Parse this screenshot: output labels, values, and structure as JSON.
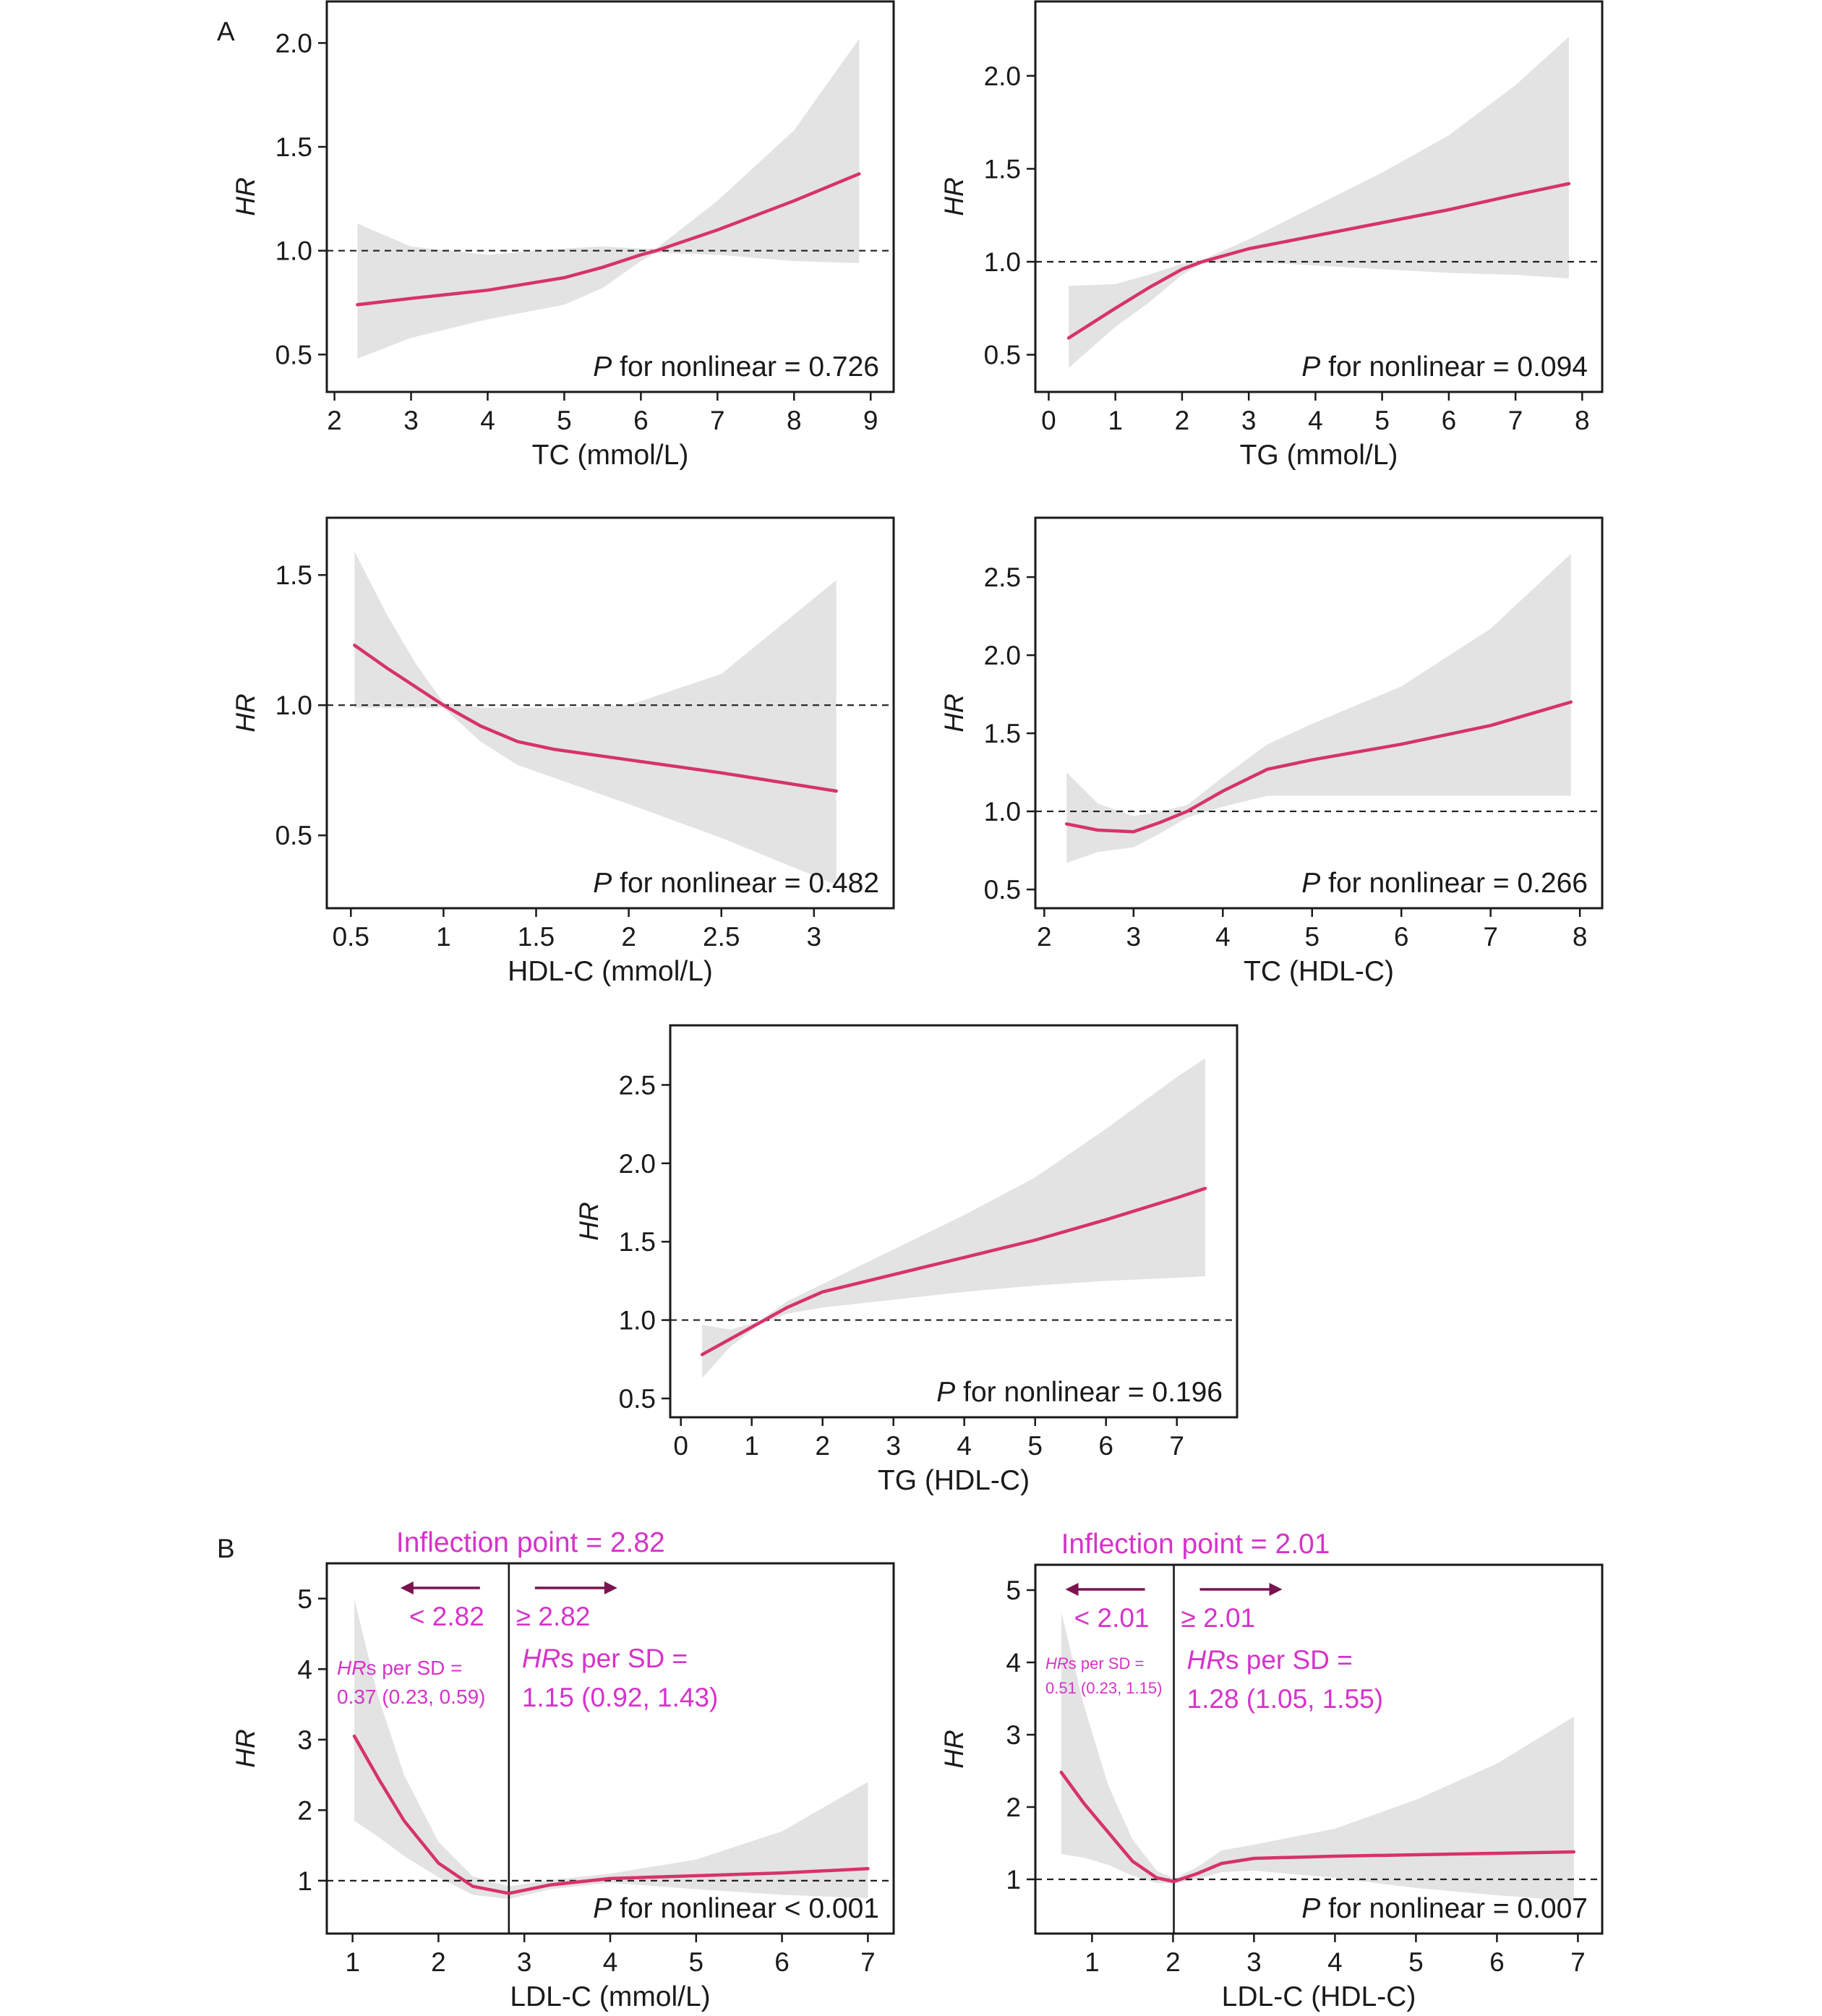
{
  "panel_labels": [
    "A",
    "B"
  ],
  "colors": {
    "curve": "#d6336b",
    "band": "#e3e3e3",
    "annotation": "#d633c9",
    "arrow": "#7a1450"
  },
  "chart_data": [
    {
      "id": "tc",
      "type": "line",
      "xlabel": "TC (mmol/L)",
      "ylabel": "HR",
      "xlim": [
        1.9,
        9.3
      ],
      "ylim": [
        0.32,
        2.2
      ],
      "xticks": [
        2,
        3,
        4,
        5,
        6,
        7,
        8,
        9
      ],
      "yticks": [
        0.5,
        1.0,
        1.5,
        2.0
      ],
      "ytick_format": 1,
      "reference_line": 1.0,
      "annotation": "P for nonlinear = 0.726",
      "x": [
        2.3,
        3,
        4,
        5,
        5.5,
        6,
        6.2,
        7,
        8,
        8.85
      ],
      "y": [
        0.74,
        0.77,
        0.81,
        0.87,
        0.92,
        0.98,
        1.0,
        1.1,
        1.24,
        1.37
      ],
      "lower": [
        0.48,
        0.58,
        0.67,
        0.74,
        0.82,
        0.95,
        0.99,
        0.98,
        0.95,
        0.94
      ],
      "upper": [
        1.13,
        1.02,
        0.98,
        1.01,
        1.02,
        1.01,
        1.01,
        1.24,
        1.58,
        2.02
      ]
    },
    {
      "id": "tg",
      "type": "line",
      "xlabel": "TG (mmol/L)",
      "ylabel": "HR",
      "xlim": [
        -0.2,
        8.3
      ],
      "ylim": [
        0.3,
        2.4
      ],
      "xticks": [
        0,
        1,
        2,
        3,
        4,
        5,
        6,
        7,
        8
      ],
      "yticks": [
        0.5,
        1.0,
        1.5,
        2.0
      ],
      "ytick_format": 1,
      "reference_line": 1.0,
      "annotation": "P for nonlinear = 0.094",
      "x": [
        0.3,
        1,
        1.5,
        2,
        2.3,
        3,
        4,
        5,
        6,
        7,
        7.8
      ],
      "y": [
        0.59,
        0.75,
        0.86,
        0.96,
        1.0,
        1.07,
        1.14,
        1.21,
        1.28,
        1.36,
        1.42
      ],
      "lower": [
        0.43,
        0.65,
        0.78,
        0.93,
        0.99,
        1.0,
        0.98,
        0.96,
        0.94,
        0.93,
        0.91
      ],
      "upper": [
        0.87,
        0.88,
        0.93,
        0.99,
        1.01,
        1.12,
        1.3,
        1.48,
        1.68,
        1.95,
        2.21
      ]
    },
    {
      "id": "hdl",
      "type": "line",
      "xlabel": "HDL-C (mmol/L)",
      "ylabel": "HR",
      "xlim": [
        0.37,
        3.43
      ],
      "ylim": [
        0.22,
        1.72
      ],
      "xticks": [
        0.5,
        1.0,
        1.5,
        2.0,
        2.5,
        3.0
      ],
      "yticks": [
        0.5,
        1.0,
        1.5
      ],
      "ytick_format": 1,
      "reference_line": 1.0,
      "annotation": "P for nonlinear = 0.482",
      "x": [
        0.52,
        0.7,
        0.85,
        1.0,
        1.2,
        1.4,
        1.6,
        2.0,
        2.5,
        3.12
      ],
      "y": [
        1.23,
        1.14,
        1.07,
        1.0,
        0.92,
        0.86,
        0.83,
        0.79,
        0.74,
        0.67
      ],
      "lower": [
        0.99,
        0.99,
        0.99,
        0.99,
        0.86,
        0.77,
        0.72,
        0.62,
        0.49,
        0.31
      ],
      "upper": [
        1.59,
        1.34,
        1.16,
        1.01,
        0.99,
        0.99,
        0.99,
        1.0,
        1.12,
        1.48
      ]
    },
    {
      "id": "tc_hdl",
      "type": "line",
      "xlabel": "TC (HDL-C)",
      "ylabel": "HR",
      "xlim": [
        1.9,
        8.25
      ],
      "ylim": [
        0.38,
        2.88
      ],
      "xticks": [
        2,
        3,
        4,
        5,
        6,
        7,
        8
      ],
      "yticks": [
        0.5,
        1.0,
        1.5,
        2.0,
        2.5
      ],
      "ytick_format": 1,
      "reference_line": 1.0,
      "annotation": "P for nonlinear = 0.266",
      "x": [
        2.25,
        2.6,
        3.0,
        3.3,
        3.6,
        4.0,
        4.5,
        5.0,
        6.0,
        7.0,
        7.9
      ],
      "y": [
        0.92,
        0.88,
        0.87,
        0.93,
        1.0,
        1.13,
        1.27,
        1.33,
        1.43,
        1.55,
        1.7
      ],
      "lower": [
        0.67,
        0.74,
        0.77,
        0.86,
        0.96,
        1.03,
        1.1,
        1.1,
        1.1,
        1.1,
        1.1
      ],
      "upper": [
        1.25,
        1.05,
        0.97,
        1.0,
        1.04,
        1.22,
        1.43,
        1.56,
        1.8,
        2.17,
        2.65
      ]
    },
    {
      "id": "tg_hdl",
      "type": "line",
      "xlabel": "TG (HDL-C)",
      "ylabel": "HR",
      "xlim": [
        -0.15,
        7.85
      ],
      "ylim": [
        0.38,
        2.88
      ],
      "xticks": [
        0,
        1,
        2,
        3,
        4,
        5,
        6,
        7
      ],
      "yticks": [
        0.5,
        1.0,
        1.5,
        2.0,
        2.5
      ],
      "ytick_format": 1,
      "reference_line": 1.0,
      "annotation": "P for nonlinear = 0.196",
      "x": [
        0.3,
        0.7,
        1.1,
        1.5,
        2.0,
        3.0,
        4.0,
        5.0,
        6.0,
        7.0,
        7.4
      ],
      "y": [
        0.78,
        0.88,
        0.98,
        1.08,
        1.18,
        1.29,
        1.4,
        1.51,
        1.64,
        1.78,
        1.84
      ],
      "lower": [
        0.63,
        0.83,
        0.97,
        1.04,
        1.08,
        1.13,
        1.18,
        1.22,
        1.25,
        1.27,
        1.28
      ],
      "upper": [
        0.97,
        0.94,
        0.99,
        1.12,
        1.23,
        1.45,
        1.67,
        1.91,
        2.22,
        2.55,
        2.67
      ]
    },
    {
      "id": "ldl",
      "type": "line",
      "xlabel": "LDL-C (mmol/L)",
      "ylabel": "HR",
      "xlim": [
        0.7,
        7.3
      ],
      "ylim": [
        0.25,
        5.5
      ],
      "xticks": [
        1,
        2,
        3,
        4,
        5,
        6,
        7
      ],
      "yticks": [
        1,
        2,
        3,
        4,
        5
      ],
      "ytick_format": 0,
      "reference_line": 1,
      "vline": 2.82,
      "annotation": "P for nonlinear < 0.001",
      "inflection_label": "Inflection point = 2.82",
      "left_label": "< 2.82",
      "right_label": "≥ 2.82",
      "left_hr_title": "HRs per SD =",
      "left_hr_value": "0.37 (0.23, 0.59)",
      "right_hr_title": "HRs per SD =",
      "right_hr_value": "1.15 (0.92, 1.43)",
      "x": [
        1.02,
        1.3,
        1.6,
        2.0,
        2.4,
        2.82,
        3.3,
        4.0,
        5.0,
        6.0,
        7.0
      ],
      "y": [
        3.05,
        2.45,
        1.85,
        1.25,
        0.92,
        0.82,
        0.94,
        1.03,
        1.07,
        1.11,
        1.17
      ],
      "lower": [
        1.85,
        1.62,
        1.35,
        1.05,
        0.8,
        0.74,
        0.88,
        0.97,
        0.88,
        0.8,
        0.75
      ],
      "upper": [
        5.0,
        3.6,
        2.5,
        1.55,
        1.06,
        0.92,
        1.01,
        1.1,
        1.3,
        1.7,
        2.4
      ]
    },
    {
      "id": "ldl_hdl",
      "type": "line",
      "xlabel": "LDL-C (HDL-C)",
      "ylabel": "HR",
      "xlim": [
        0.3,
        7.3
      ],
      "ylim": [
        0.25,
        5.35
      ],
      "xticks": [
        1,
        2,
        3,
        4,
        5,
        6,
        7
      ],
      "yticks": [
        1,
        2,
        3,
        4,
        5
      ],
      "ytick_format": 0,
      "reference_line": 1,
      "vline": 2.01,
      "annotation": "P for nonlinear = 0.007",
      "inflection_label": "Inflection point = 2.01",
      "left_label": "< 2.01",
      "right_label": "≥ 2.01",
      "left_hr_title": "HRs per SD =",
      "left_hr_value": "0.51 (0.23, 1.15)",
      "right_hr_title": "HRs per SD =",
      "right_hr_value": "1.28 (1.05, 1.55)",
      "x": [
        0.62,
        0.9,
        1.2,
        1.5,
        1.8,
        2.01,
        2.3,
        2.6,
        3.0,
        4.0,
        5.0,
        6.0,
        6.95
      ],
      "y": [
        2.48,
        2.05,
        1.65,
        1.25,
        1.02,
        0.97,
        1.08,
        1.22,
        1.29,
        1.32,
        1.34,
        1.36,
        1.38
      ],
      "lower": [
        1.35,
        1.3,
        1.2,
        1.05,
        0.95,
        0.94,
        1.0,
        1.1,
        1.12,
        1.02,
        0.88,
        0.78,
        0.7
      ],
      "upper": [
        4.7,
        3.4,
        2.3,
        1.55,
        1.12,
        1.01,
        1.17,
        1.4,
        1.48,
        1.7,
        2.1,
        2.6,
        3.25
      ]
    }
  ]
}
